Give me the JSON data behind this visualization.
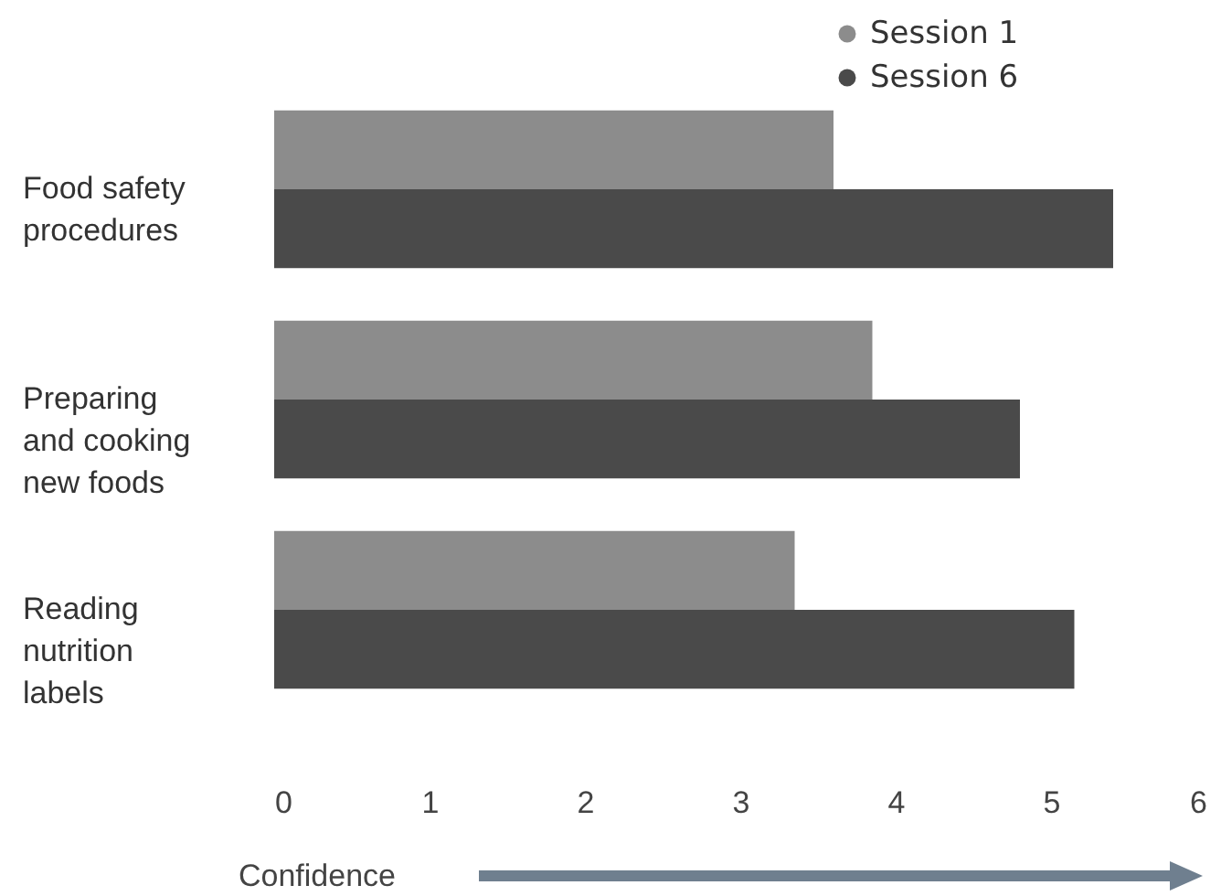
{
  "chart_data": {
    "type": "bar",
    "orientation": "horizontal",
    "categories": [
      "Food safety procedures",
      "Preparing and cooking new foods",
      "Reading nutrition labels"
    ],
    "series": [
      {
        "name": "Session 1",
        "color": "#8c8c8c",
        "values": [
          3.6,
          3.85,
          3.35
        ]
      },
      {
        "name": "Session 6",
        "color": "#4a4a4a",
        "values": [
          5.4,
          4.8,
          5.15
        ]
      }
    ],
    "xlim": [
      0,
      6
    ],
    "xticks": [
      0,
      1,
      2,
      3,
      4,
      5,
      6
    ],
    "xlabel": "Confidence",
    "legend": "top right",
    "grid": false
  }
}
